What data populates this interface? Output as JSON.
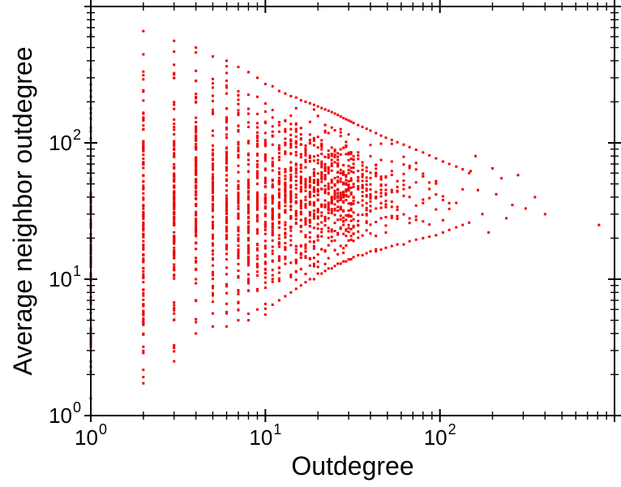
{
  "chart_data": {
    "type": "scatter",
    "title": "",
    "xlabel": "Outdegree",
    "ylabel": "Average neighbor outdegree",
    "xscale": "log",
    "yscale": "log",
    "xlim": [
      1,
      1000
    ],
    "ylim": [
      1,
      1000
    ],
    "grid": false,
    "legend": "none",
    "marker": "small-square",
    "marker_size_px": 3,
    "marker_color": "#ee0000",
    "axis_color": "#000000",
    "background_color": "#ffffff",
    "x_tick_labels": [
      {
        "value": 1,
        "mantissa": "10",
        "sup": "0"
      },
      {
        "value": 10,
        "mantissa": "10",
        "sup": "1"
      },
      {
        "value": 100,
        "mantissa": "10",
        "sup": "2"
      }
    ],
    "y_tick_labels": [
      {
        "value": 1,
        "mantissa": "10",
        "sup": "0"
      },
      {
        "value": 10,
        "mantissa": "10",
        "sup": "1"
      },
      {
        "value": 100,
        "mantissa": "10",
        "sup": "2"
      }
    ],
    "columns_schema": [
      "x_outdegree",
      "y_min",
      "y_max",
      "count"
    ],
    "columns": [
      [
        1,
        1,
        620,
        90
      ],
      [
        2,
        1,
        660,
        130
      ],
      [
        3,
        2.5,
        560,
        115
      ],
      [
        4,
        4,
        500,
        105
      ],
      [
        5,
        4.5,
        430,
        95
      ],
      [
        6,
        4.5,
        400,
        88
      ],
      [
        7,
        5,
        360,
        80
      ],
      [
        8,
        5,
        330,
        74
      ],
      [
        9,
        6,
        300,
        68
      ],
      [
        10,
        5.5,
        270,
        66
      ],
      [
        11,
        6.5,
        260,
        62
      ],
      [
        12,
        7,
        240,
        58
      ],
      [
        13,
        7.5,
        230,
        54
      ],
      [
        14,
        8,
        220,
        51
      ],
      [
        15,
        8.5,
        215,
        48
      ],
      [
        16,
        9,
        205,
        45
      ],
      [
        17,
        9.5,
        200,
        43
      ],
      [
        18,
        10,
        195,
        41
      ],
      [
        19,
        10,
        190,
        39
      ],
      [
        20,
        11,
        185,
        37
      ],
      [
        21,
        11,
        180,
        35
      ],
      [
        22,
        11.5,
        176,
        33
      ],
      [
        23,
        12,
        172,
        32
      ],
      [
        24,
        12,
        168,
        31
      ],
      [
        25,
        12.5,
        164,
        30
      ],
      [
        26,
        13,
        160,
        29
      ],
      [
        27,
        13,
        156,
        28
      ],
      [
        28,
        13.5,
        152,
        27
      ],
      [
        29,
        13.5,
        149,
        26
      ],
      [
        30,
        14,
        146,
        25
      ],
      [
        31,
        14,
        143,
        24
      ],
      [
        32,
        14.5,
        140,
        23
      ],
      [
        34,
        15,
        135,
        21
      ],
      [
        36,
        15,
        131,
        20
      ],
      [
        38,
        15.5,
        127,
        19
      ],
      [
        40,
        16,
        123,
        18
      ],
      [
        43,
        16,
        118,
        16
      ],
      [
        46,
        16.5,
        113,
        15
      ],
      [
        49,
        17,
        109,
        14
      ],
      [
        53,
        17.5,
        105,
        12
      ],
      [
        57,
        18,
        101,
        11
      ],
      [
        62,
        18,
        97,
        10
      ],
      [
        67,
        19,
        93,
        9
      ],
      [
        73,
        19.5,
        89,
        8
      ],
      [
        80,
        20,
        85,
        7
      ],
      [
        87,
        20.5,
        81,
        6
      ],
      [
        95,
        21,
        77,
        6
      ],
      [
        104,
        22,
        73,
        5
      ],
      [
        113,
        23,
        70,
        4
      ],
      [
        124,
        24,
        67,
        3
      ],
      [
        135,
        25,
        64,
        3
      ],
      [
        147,
        26,
        60,
        2
      ]
    ],
    "points_schema": [
      "x_outdegree",
      "y_avg_neighbor_outdegree"
    ],
    "points": [
      [
        150,
        62
      ],
      [
        160,
        80
      ],
      [
        165,
        45
      ],
      [
        175,
        30
      ],
      [
        190,
        22
      ],
      [
        200,
        65
      ],
      [
        210,
        42
      ],
      [
        225,
        55
      ],
      [
        240,
        28
      ],
      [
        260,
        35
      ],
      [
        280,
        58
      ],
      [
        310,
        33
      ],
      [
        350,
        40
      ],
      [
        400,
        30
      ],
      [
        815,
        25
      ]
    ],
    "seed": 1337
  }
}
